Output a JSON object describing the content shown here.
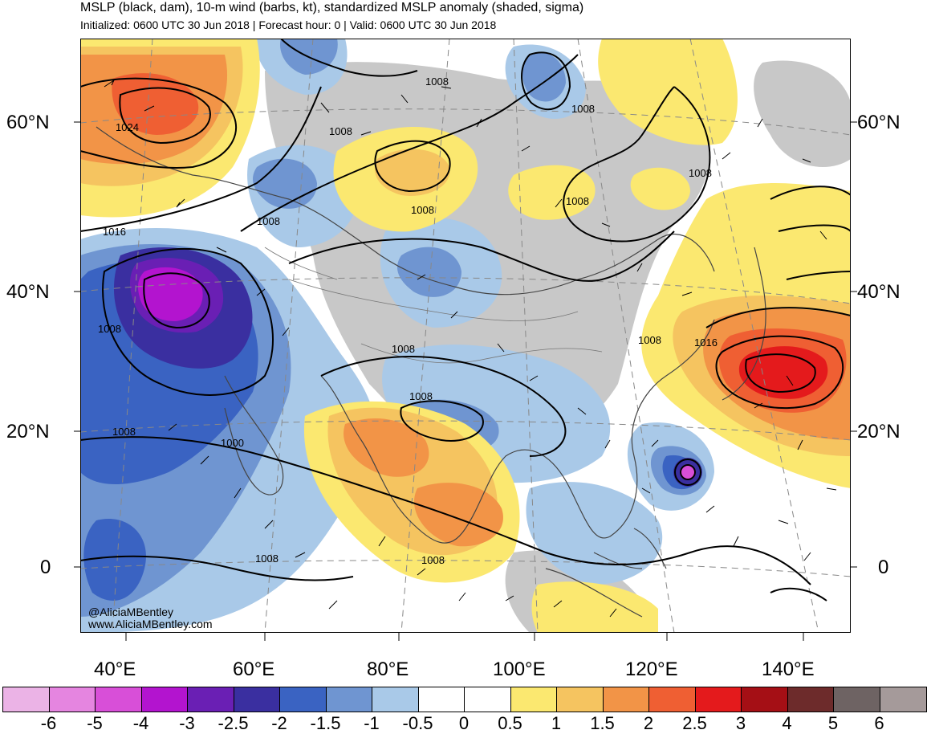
{
  "title": {
    "line1": "MSLP (black, dam), 10-m wind (barbs, kt), standardized MSLP anomaly (shaded, sigma)",
    "line2": "Initialized: 0600 UTC 30 Jun 2018 | Forecast hour: 0 | Valid: 0600 UTC 30 Jun 2018"
  },
  "lat_labels": [
    "60°N",
    "40°N",
    "20°N",
    "0"
  ],
  "lon_labels": [
    "40°E",
    "60°E",
    "80°E",
    "100°E",
    "120°E",
    "140°E"
  ],
  "isobar_labels": [
    "1024",
    "1016",
    "1008",
    "1008",
    "1008",
    "1008",
    "1008",
    "1008",
    "1008",
    "1008",
    "1008",
    "1008",
    "1016",
    "1008",
    "1000",
    "1008",
    "1008",
    "1008"
  ],
  "credit": {
    "line1": "@AliciaMBentley",
    "line2": "www.AliciaMBentley.com"
  },
  "colorbar": {
    "ticks": [
      "-6",
      "-5",
      "-4",
      "-3",
      "-2.5",
      "-2",
      "-1.5",
      "-1",
      "-0.5",
      "0",
      "0.5",
      "1",
      "1.5",
      "2",
      "2.5",
      "3",
      "4",
      "5",
      "6"
    ],
    "colors": [
      "#ebb3e6",
      "#e585e0",
      "#d84fd8",
      "#b314cf",
      "#6a1fb4",
      "#3a2fa0",
      "#3a63c2",
      "#6f95d1",
      "#a9c9e8",
      "#ffffff",
      "#ffffff",
      "#fbe870",
      "#f5c460",
      "#f29447",
      "#ef5f33",
      "#e41a1c",
      "#a50f15",
      "#6d2b2b",
      "#6e6363",
      "#a59a9a"
    ]
  },
  "anomaly_colors": {
    "gray": "#c8c8c8",
    "light_blue": "#a9c9e8",
    "mid_blue": "#6f95d1",
    "blue": "#3a63c2",
    "dark_blue": "#3a2fa0",
    "indigo": "#6a1fb4",
    "purple": "#b314cf",
    "yellow": "#fbe870",
    "light_orange": "#f5c460",
    "orange": "#f29447",
    "red_orange": "#ef5f33",
    "red": "#e41a1c",
    "magenta": "#d84fd8"
  }
}
